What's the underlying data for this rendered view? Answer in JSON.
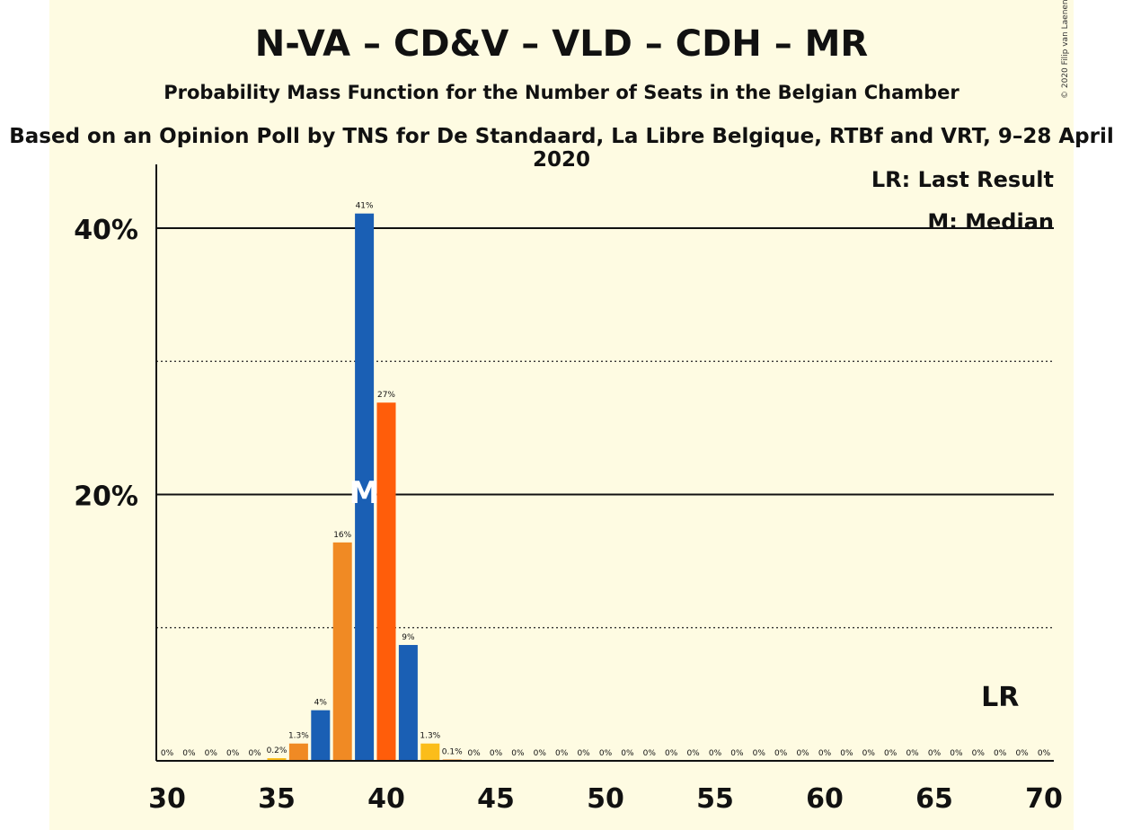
{
  "title": "N-VA – CD&V – VLD – CDH – MR",
  "subtitle": "Probability Mass Function for the Number of Seats in the Belgian Chamber",
  "caption": "Based on an Opinion Poll by TNS for De Standaard, La Libre Belgique, RTBf and VRT, 9–28 April 2020",
  "copyright": "© 2020 Filip van Laenen",
  "legend": {
    "last_result": "LR: Last Result",
    "median": "M: Median"
  },
  "chart_data": {
    "type": "bar",
    "x": [
      30,
      31,
      32,
      33,
      34,
      35,
      36,
      37,
      38,
      39,
      40,
      41,
      42,
      43,
      44,
      45,
      46,
      47,
      48,
      49,
      50,
      51,
      52,
      53,
      54,
      55,
      56,
      57,
      58,
      59,
      60,
      61,
      62,
      63,
      64,
      65,
      66,
      67,
      68,
      69,
      70
    ],
    "values": [
      0,
      0,
      0,
      0,
      0,
      0.2,
      1.3,
      3.8,
      16.4,
      41.1,
      26.9,
      8.7,
      1.3,
      0.1,
      0,
      0,
      0,
      0,
      0,
      0,
      0,
      0,
      0,
      0,
      0,
      0,
      0,
      0,
      0,
      0,
      0,
      0,
      0,
      0,
      0,
      0,
      0,
      0,
      0,
      0,
      0
    ],
    "data_labels": [
      "0%",
      "0%",
      "0%",
      "0%",
      "0%",
      "0.2%",
      "1.3%",
      "4%",
      "16%",
      "41%",
      "27%",
      "9%",
      "1.3%",
      "0.1%",
      "0%",
      "0%",
      "0%",
      "0%",
      "0%",
      "0%",
      "0%",
      "0%",
      "0%",
      "0%",
      "0%",
      "0%",
      "0%",
      "0%",
      "0%",
      "0%",
      "0%",
      "0%",
      "0%",
      "0%",
      "0%",
      "0%",
      "0%",
      "0%",
      "0%",
      "0%",
      "0%"
    ],
    "bar_colors": [
      "#1a5fb4",
      "#f08a24",
      "#1a5fb4",
      "#ff5d0a",
      "#1a5fb4",
      "#fbbd1a",
      "#f08a24"
    ],
    "xlim": [
      30,
      70
    ],
    "xticks": [
      30,
      35,
      40,
      45,
      50,
      55,
      60,
      65,
      70
    ],
    "ylim": [
      0,
      45
    ],
    "yticks": [
      {
        "value": 20,
        "label": "20%"
      },
      {
        "value": 40,
        "label": "40%"
      }
    ],
    "dotted_gridlines": [
      10,
      30
    ],
    "median": 39,
    "median_marker": "M",
    "last_result": 68,
    "last_result_marker": "LR"
  }
}
